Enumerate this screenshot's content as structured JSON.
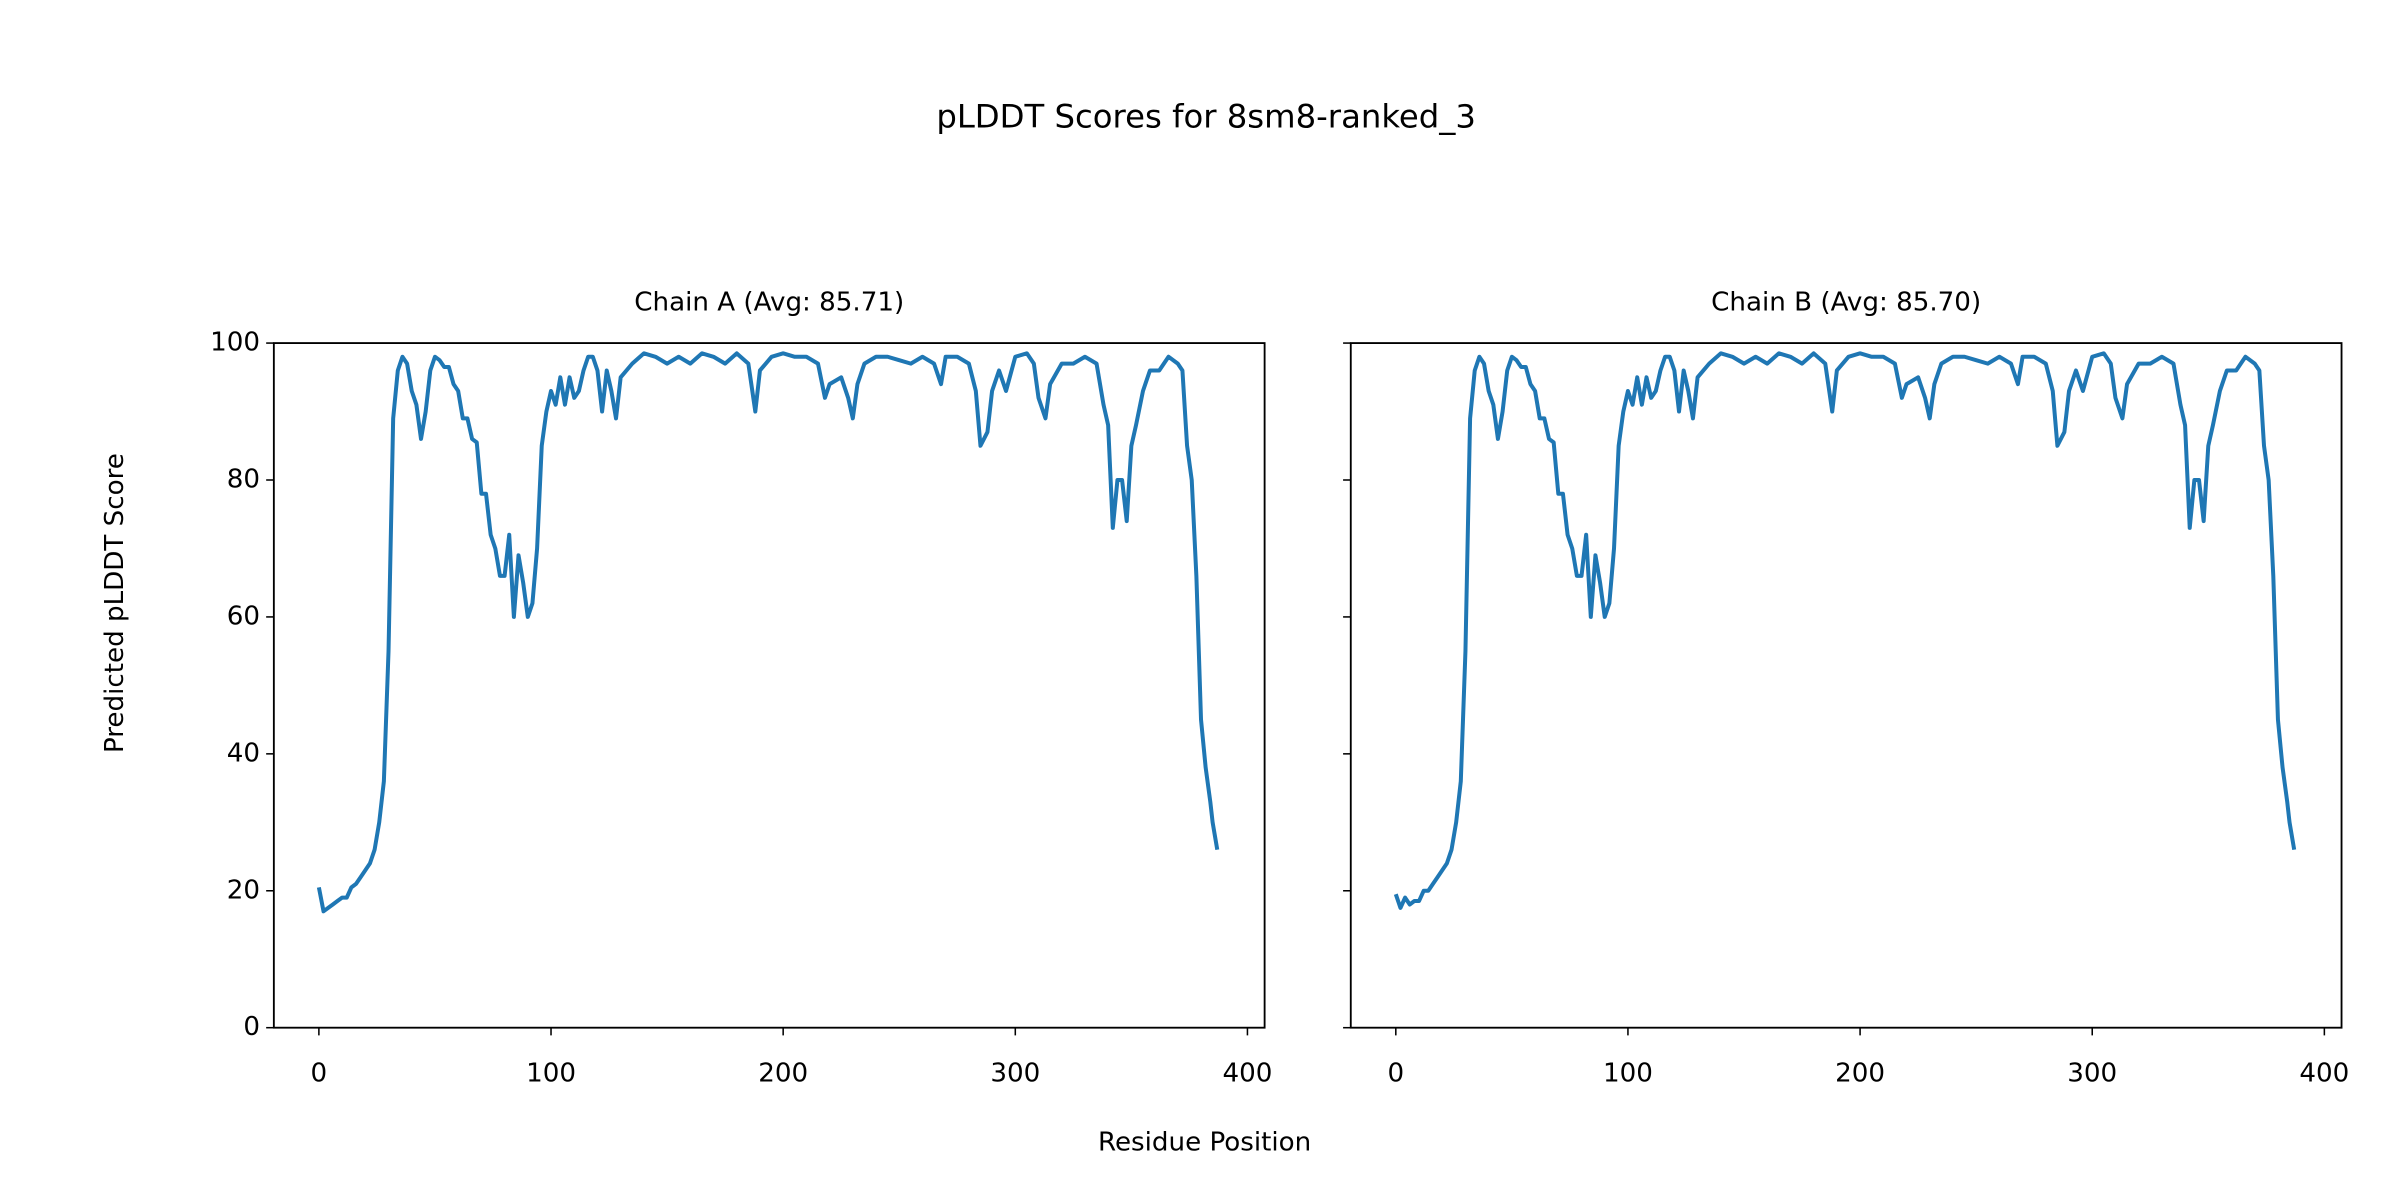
{
  "figure": {
    "title": "pLDDT Scores for 8sm8-ranked_3",
    "xlabel": "Residue Position",
    "ylabel": "Predicted pLDDT Score"
  },
  "chart_data": [
    {
      "type": "line",
      "title": "Chain A (Avg: 85.71)",
      "color": "#1f77b4",
      "x": [
        0,
        2,
        4,
        6,
        8,
        10,
        12,
        14,
        16,
        18,
        20,
        22,
        24,
        26,
        28,
        30,
        32,
        34,
        36,
        38,
        40,
        42,
        44,
        46,
        48,
        50,
        52,
        54,
        56,
        58,
        60,
        62,
        64,
        66,
        68,
        70,
        72,
        74,
        76,
        78,
        80,
        82,
        84,
        86,
        88,
        90,
        92,
        94,
        96,
        98,
        100,
        102,
        104,
        106,
        108,
        110,
        112,
        114,
        116,
        118,
        120,
        122,
        124,
        126,
        128,
        130,
        135,
        140,
        145,
        150,
        155,
        160,
        165,
        170,
        175,
        180,
        185,
        188,
        190,
        195,
        200,
        205,
        210,
        215,
        218,
        220,
        225,
        228,
        230,
        232,
        235,
        240,
        245,
        250,
        255,
        260,
        265,
        268,
        270,
        275,
        280,
        283,
        285,
        288,
        290,
        293,
        296,
        300,
        305,
        308,
        310,
        313,
        315,
        320,
        325,
        330,
        335,
        338,
        340,
        342,
        344,
        346,
        348,
        350,
        352,
        355,
        358,
        362,
        366,
        370,
        372,
        374,
        376,
        378,
        380,
        382,
        384,
        385,
        386,
        387
      ],
      "values": [
        20.5,
        17,
        17.5,
        18,
        18.5,
        19,
        19,
        20.5,
        21,
        22,
        23,
        24,
        26,
        30,
        36,
        55,
        89,
        96,
        98,
        97,
        93,
        91,
        86,
        90,
        96,
        98,
        97.5,
        96.5,
        96.5,
        94,
        93,
        89,
        89,
        86,
        85.5,
        78,
        78,
        72,
        70,
        66,
        66,
        72,
        60,
        69,
        65,
        60,
        62,
        70,
        85,
        90,
        93,
        91,
        95,
        91,
        95,
        92,
        93,
        96,
        98,
        98,
        96,
        90,
        96,
        93,
        89,
        95,
        97,
        98.5,
        98,
        97,
        98,
        97,
        98.5,
        98,
        97,
        98.5,
        97,
        90,
        96,
        98,
        98.5,
        98,
        98,
        97,
        92,
        94,
        95,
        92,
        89,
        94,
        97,
        98,
        98,
        97.5,
        97,
        98,
        97,
        94,
        98,
        98,
        97,
        93,
        85,
        87,
        93,
        96,
        93,
        98,
        98.5,
        97,
        92,
        89,
        94,
        97,
        97,
        98,
        97,
        91,
        88,
        73,
        80,
        80,
        74,
        85,
        88,
        93,
        96,
        96,
        98,
        97,
        96,
        85,
        80,
        66,
        45,
        38,
        33,
        30,
        28,
        26
      ],
      "xlim": [
        -19.4,
        407.4
      ],
      "xticks": [
        0,
        100,
        200,
        300,
        400
      ],
      "ylim": [
        0,
        100
      ],
      "yticks": [
        0,
        20,
        40,
        60,
        80,
        100
      ]
    },
    {
      "type": "line",
      "title": "Chain B (Avg: 85.70)",
      "color": "#1f77b4",
      "x": [
        0,
        2,
        4,
        6,
        8,
        10,
        12,
        14,
        16,
        18,
        20,
        22,
        24,
        26,
        28,
        30,
        32,
        34,
        36,
        38,
        40,
        42,
        44,
        46,
        48,
        50,
        52,
        54,
        56,
        58,
        60,
        62,
        64,
        66,
        68,
        70,
        72,
        74,
        76,
        78,
        80,
        82,
        84,
        86,
        88,
        90,
        92,
        94,
        96,
        98,
        100,
        102,
        104,
        106,
        108,
        110,
        112,
        114,
        116,
        118,
        120,
        122,
        124,
        126,
        128,
        130,
        135,
        140,
        145,
        150,
        155,
        160,
        165,
        170,
        175,
        180,
        185,
        188,
        190,
        195,
        200,
        205,
        210,
        215,
        218,
        220,
        225,
        228,
        230,
        232,
        235,
        240,
        245,
        250,
        255,
        260,
        265,
        268,
        270,
        275,
        280,
        283,
        285,
        288,
        290,
        293,
        296,
        300,
        305,
        308,
        310,
        313,
        315,
        320,
        325,
        330,
        335,
        338,
        340,
        342,
        344,
        346,
        348,
        350,
        352,
        355,
        358,
        362,
        366,
        370,
        372,
        374,
        376,
        378,
        380,
        382,
        384,
        385,
        386,
        387
      ],
      "values": [
        19.5,
        17.5,
        19,
        18,
        18.5,
        18.5,
        20,
        20,
        21,
        22,
        23,
        24,
        26,
        30,
        36,
        55,
        89,
        96,
        98,
        97,
        93,
        91,
        86,
        90,
        96,
        98,
        97.5,
        96.5,
        96.5,
        94,
        93,
        89,
        89,
        86,
        85.5,
        78,
        78,
        72,
        70,
        66,
        66,
        72,
        60,
        69,
        65,
        60,
        62,
        70,
        85,
        90,
        93,
        91,
        95,
        91,
        95,
        92,
        93,
        96,
        98,
        98,
        96,
        90,
        96,
        93,
        89,
        95,
        97,
        98.5,
        98,
        97,
        98,
        97,
        98.5,
        98,
        97,
        98.5,
        97,
        90,
        96,
        98,
        98.5,
        98,
        98,
        97,
        92,
        94,
        95,
        92,
        89,
        94,
        97,
        98,
        98,
        97.5,
        97,
        98,
        97,
        94,
        98,
        98,
        97,
        93,
        85,
        87,
        93,
        96,
        93,
        98,
        98.5,
        97,
        92,
        89,
        94,
        97,
        97,
        98,
        97,
        91,
        88,
        73,
        80,
        80,
        74,
        85,
        88,
        93,
        96,
        96,
        98,
        97,
        96,
        85,
        80,
        66,
        45,
        38,
        33,
        30,
        28,
        26
      ],
      "xlim": [
        -19.4,
        407.4
      ],
      "xticks": [
        0,
        100,
        200,
        300,
        400
      ],
      "ylim": [
        0,
        100
      ],
      "yticks": [
        0,
        20,
        40,
        60,
        80,
        100
      ]
    }
  ]
}
